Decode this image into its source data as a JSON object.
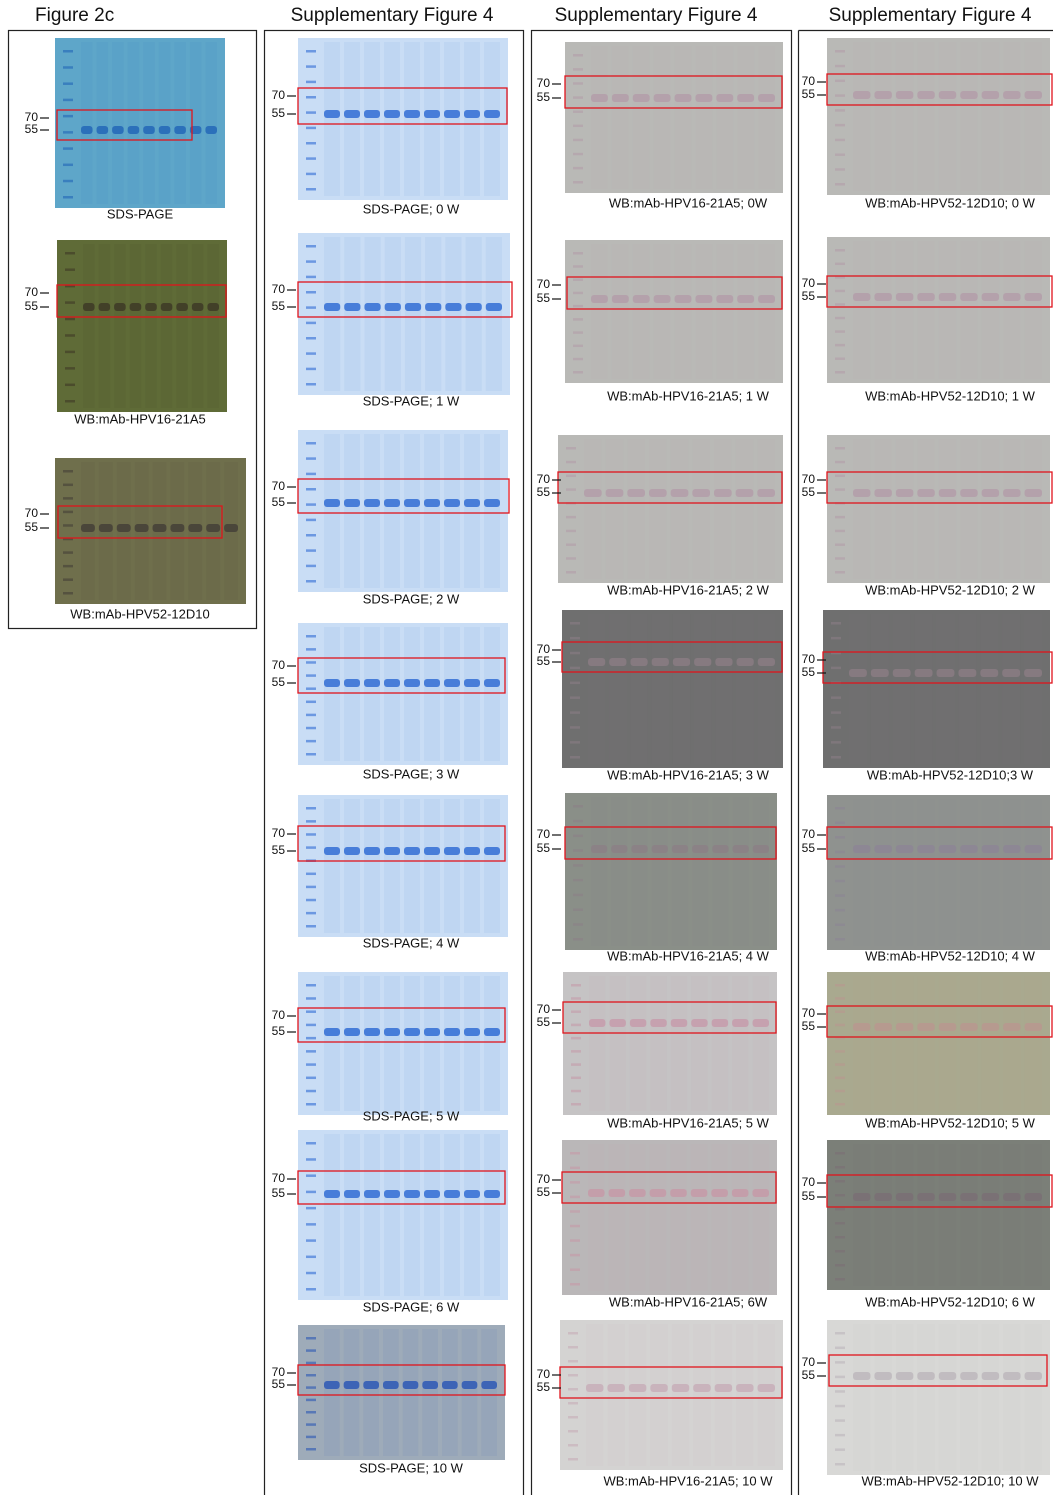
{
  "columns": [
    {
      "title": "Figure 2c",
      "gels": [
        {
          "caption": "SDS-PAGE",
          "markers": [
            "70",
            "55"
          ]
        },
        {
          "caption": "WB:mAb-HPV16-21A5",
          "markers": [
            "70",
            "55"
          ]
        },
        {
          "caption": "WB:mAb-HPV52-12D10",
          "markers": [
            "70",
            "55"
          ]
        }
      ]
    },
    {
      "title": "Supplementary Figure 4",
      "gels": [
        {
          "caption": "SDS-PAGE; 0 W",
          "markers": [
            "70",
            "55"
          ]
        },
        {
          "caption": "SDS-PAGE; 1 W",
          "markers": [
            "70",
            "55"
          ]
        },
        {
          "caption": "SDS-PAGE; 2 W",
          "markers": [
            "70",
            "55"
          ]
        },
        {
          "caption": "SDS-PAGE; 3 W",
          "markers": [
            "70",
            "55"
          ]
        },
        {
          "caption": "SDS-PAGE; 4 W",
          "markers": [
            "70",
            "55"
          ]
        },
        {
          "caption": "SDS-PAGE; 5 W",
          "markers": [
            "70",
            "55"
          ]
        },
        {
          "caption": "SDS-PAGE; 6 W",
          "markers": [
            "70",
            "55"
          ]
        },
        {
          "caption": "SDS-PAGE; 10 W",
          "markers": [
            "70",
            "55"
          ]
        }
      ]
    },
    {
      "title": "Supplementary Figure 4",
      "gels": [
        {
          "caption": "WB:mAb-HPV16-21A5; 0W",
          "markers": [
            "70",
            "55"
          ]
        },
        {
          "caption": "WB:mAb-HPV16-21A5; 1 W",
          "markers": [
            "70",
            "55"
          ]
        },
        {
          "caption": "WB:mAb-HPV16-21A5; 2 W",
          "markers": [
            "70",
            "55"
          ]
        },
        {
          "caption": "WB:mAb-HPV16-21A5; 3 W",
          "markers": [
            "70",
            "55"
          ]
        },
        {
          "caption": "WB:mAb-HPV16-21A5; 4 W",
          "markers": [
            "70",
            "55"
          ]
        },
        {
          "caption": "WB:mAb-HPV16-21A5; 5 W",
          "markers": [
            "70",
            "55"
          ]
        },
        {
          "caption": "WB:mAb-HPV16-21A5; 6W",
          "markers": [
            "70",
            "55"
          ]
        },
        {
          "caption": "WB:mAb-HPV16-21A5; 10 W",
          "markers": [
            "70",
            "55"
          ]
        }
      ]
    },
    {
      "title": "Supplementary Figure 4",
      "gels": [
        {
          "caption": "WB:mAb-HPV52-12D10; 0 W",
          "markers": [
            "70",
            "55"
          ]
        },
        {
          "caption": "WB:mAb-HPV52-12D10; 1 W",
          "markers": [
            "70",
            "55"
          ]
        },
        {
          "caption": "WB:mAb-HPV52-12D10; 2 W",
          "markers": [
            "70",
            "55"
          ]
        },
        {
          "caption": "WB:mAb-HPV52-12D10;3 W",
          "markers": [
            "70",
            "55"
          ]
        },
        {
          "caption": "WB:mAb-HPV52-12D10; 4 W",
          "markers": [
            "70",
            "55"
          ]
        },
        {
          "caption": "WB:mAb-HPV52-12D10; 5 W",
          "markers": [
            "70",
            "55"
          ]
        },
        {
          "caption": "WB:mAb-HPV52-12D10; 6 W",
          "markers": [
            "70",
            "55"
          ]
        },
        {
          "caption": "WB:mAb-HPV52-12D10; 10 W",
          "markers": [
            "70",
            "55"
          ]
        }
      ]
    }
  ]
}
